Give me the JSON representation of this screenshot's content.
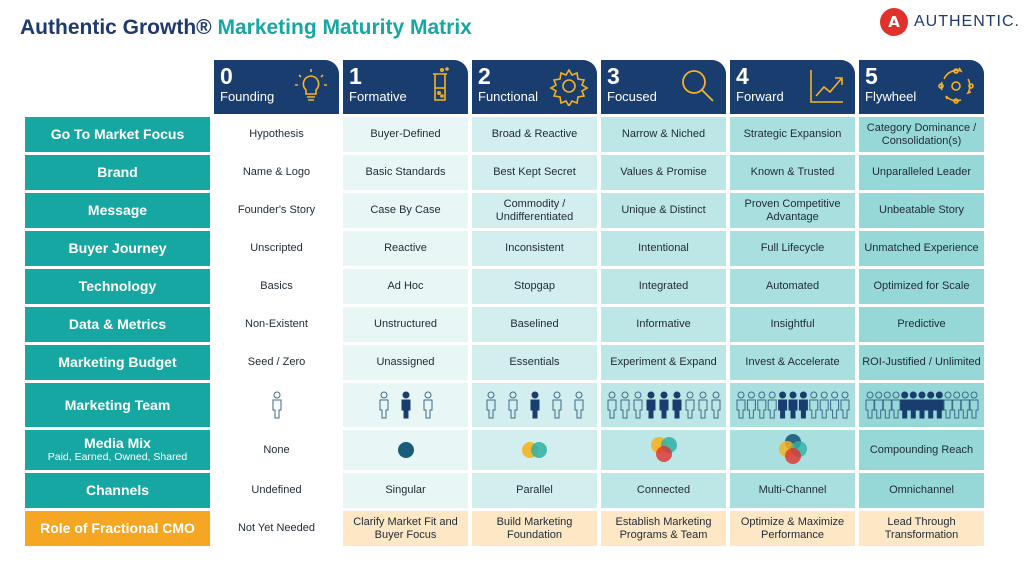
{
  "title": {
    "part1": "Authentic Growth®",
    "part2": "Marketing Maturity Matrix"
  },
  "logo": {
    "mark": "A",
    "wordmark": "AUTHENTIC."
  },
  "stages": [
    {
      "num": "0",
      "name": "Founding",
      "icon": "lightbulb-icon"
    },
    {
      "num": "1",
      "name": "Formative",
      "icon": "beaker-icon"
    },
    {
      "num": "2",
      "name": "Functional",
      "icon": "gear-icon"
    },
    {
      "num": "3",
      "name": "Focused",
      "icon": "magnifier-icon"
    },
    {
      "num": "4",
      "name": "Forward",
      "icon": "growth-chart-icon"
    },
    {
      "num": "5",
      "name": "Flywheel",
      "icon": "flywheel-cycle-icon"
    }
  ],
  "rows": [
    {
      "label": "Go To Market Focus",
      "cells": [
        "Hypothesis",
        "Buyer-Defined",
        "Broad & Reactive",
        "Narrow & Niched",
        "Strategic Expansion",
        "Category Dominance / Consolidation(s)"
      ]
    },
    {
      "label": "Brand",
      "cells": [
        "Name & Logo",
        "Basic Standards",
        "Best Kept Secret",
        "Values & Promise",
        "Known & Trusted",
        "Unparalleled Leader"
      ]
    },
    {
      "label": "Message",
      "cells": [
        "Founder's Story",
        "Case By Case",
        "Commodity / Undifferentiated",
        "Unique & Distinct",
        "Proven Competitive Advantage",
        "Unbeatable Story"
      ]
    },
    {
      "label": "Buyer Journey",
      "cells": [
        "Unscripted",
        "Reactive",
        "Inconsistent",
        "Intentional",
        "Full Lifecycle",
        "Unmatched Experience"
      ]
    },
    {
      "label": "Technology",
      "cells": [
        "Basics",
        "Ad Hoc",
        "Stopgap",
        "Integrated",
        "Automated",
        "Optimized for Scale"
      ]
    },
    {
      "label": "Data & Metrics",
      "cells": [
        "Non-Existent",
        "Unstructured",
        "Baselined",
        "Informative",
        "Insightful",
        "Predictive"
      ]
    },
    {
      "label": "Marketing Budget",
      "cells": [
        "Seed / Zero",
        "Unassigned",
        "Essentials",
        "Experiment & Expand",
        "Invest & Accelerate",
        "ROI-Justified / Unlimited"
      ]
    }
  ],
  "team_row": {
    "label": "Marketing Team",
    "icons": [
      "single-person-icon",
      "small-team-icon",
      "team-icon",
      "large-team-icon",
      "department-icon",
      "organization-icon"
    ]
  },
  "media_row": {
    "label": "Media Mix",
    "sublabel": "Paid, Earned, Owned, Shared",
    "none_text": "None",
    "final_text": "Compounding Reach",
    "colors": [
      "#1b5b7a",
      "#f5b321",
      "#2fb0a5",
      "#e1312c"
    ]
  },
  "channels_row": {
    "label": "Channels",
    "cells": [
      "Undefined",
      "Singular",
      "Parallel",
      "Connected",
      "Multi-Channel",
      "Omnichannel"
    ]
  },
  "cmo_row": {
    "label": "Role of Fractional CMO",
    "cells": [
      "Not Yet Needed",
      "Clarify Market Fit and Buyer Focus",
      "Build Marketing Foundation",
      "Establish Marketing Programs & Team",
      "Optimize & Maximize Performance",
      "Lead Through Transformation"
    ]
  },
  "colors": {
    "navy": "#1a3d6f",
    "teal": "#17a7a2",
    "orange": "#f5a623",
    "brand_red": "#e1312c"
  }
}
